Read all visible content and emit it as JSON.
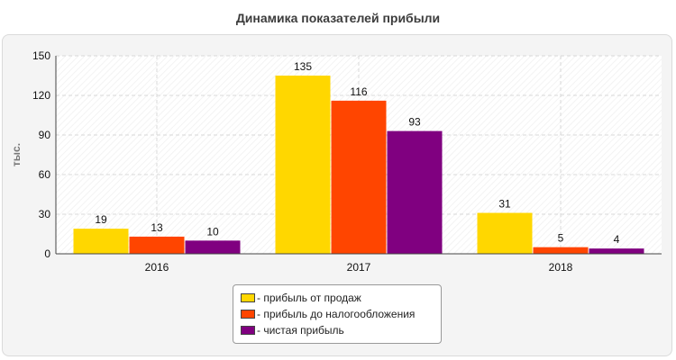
{
  "chart_data": {
    "type": "bar",
    "title": "Динамика показателей прибыли",
    "ylabel": "тыс.",
    "xlabel": "",
    "categories": [
      "2016",
      "2017",
      "2018"
    ],
    "ylim": [
      0,
      150
    ],
    "yticks": [
      0,
      30,
      60,
      90,
      120,
      150
    ],
    "grid": true,
    "legend_position": "bottom",
    "series": [
      {
        "name": "- прибыль от продаж",
        "values": [
          19,
          135,
          31
        ],
        "color": "#ffd700"
      },
      {
        "name": "- прибыль до налогообложения",
        "values": [
          13,
          116,
          5
        ],
        "color": "#ff4500"
      },
      {
        "name": "- чистая прибыль",
        "values": [
          10,
          93,
          4
        ],
        "color": "#800080"
      }
    ]
  }
}
